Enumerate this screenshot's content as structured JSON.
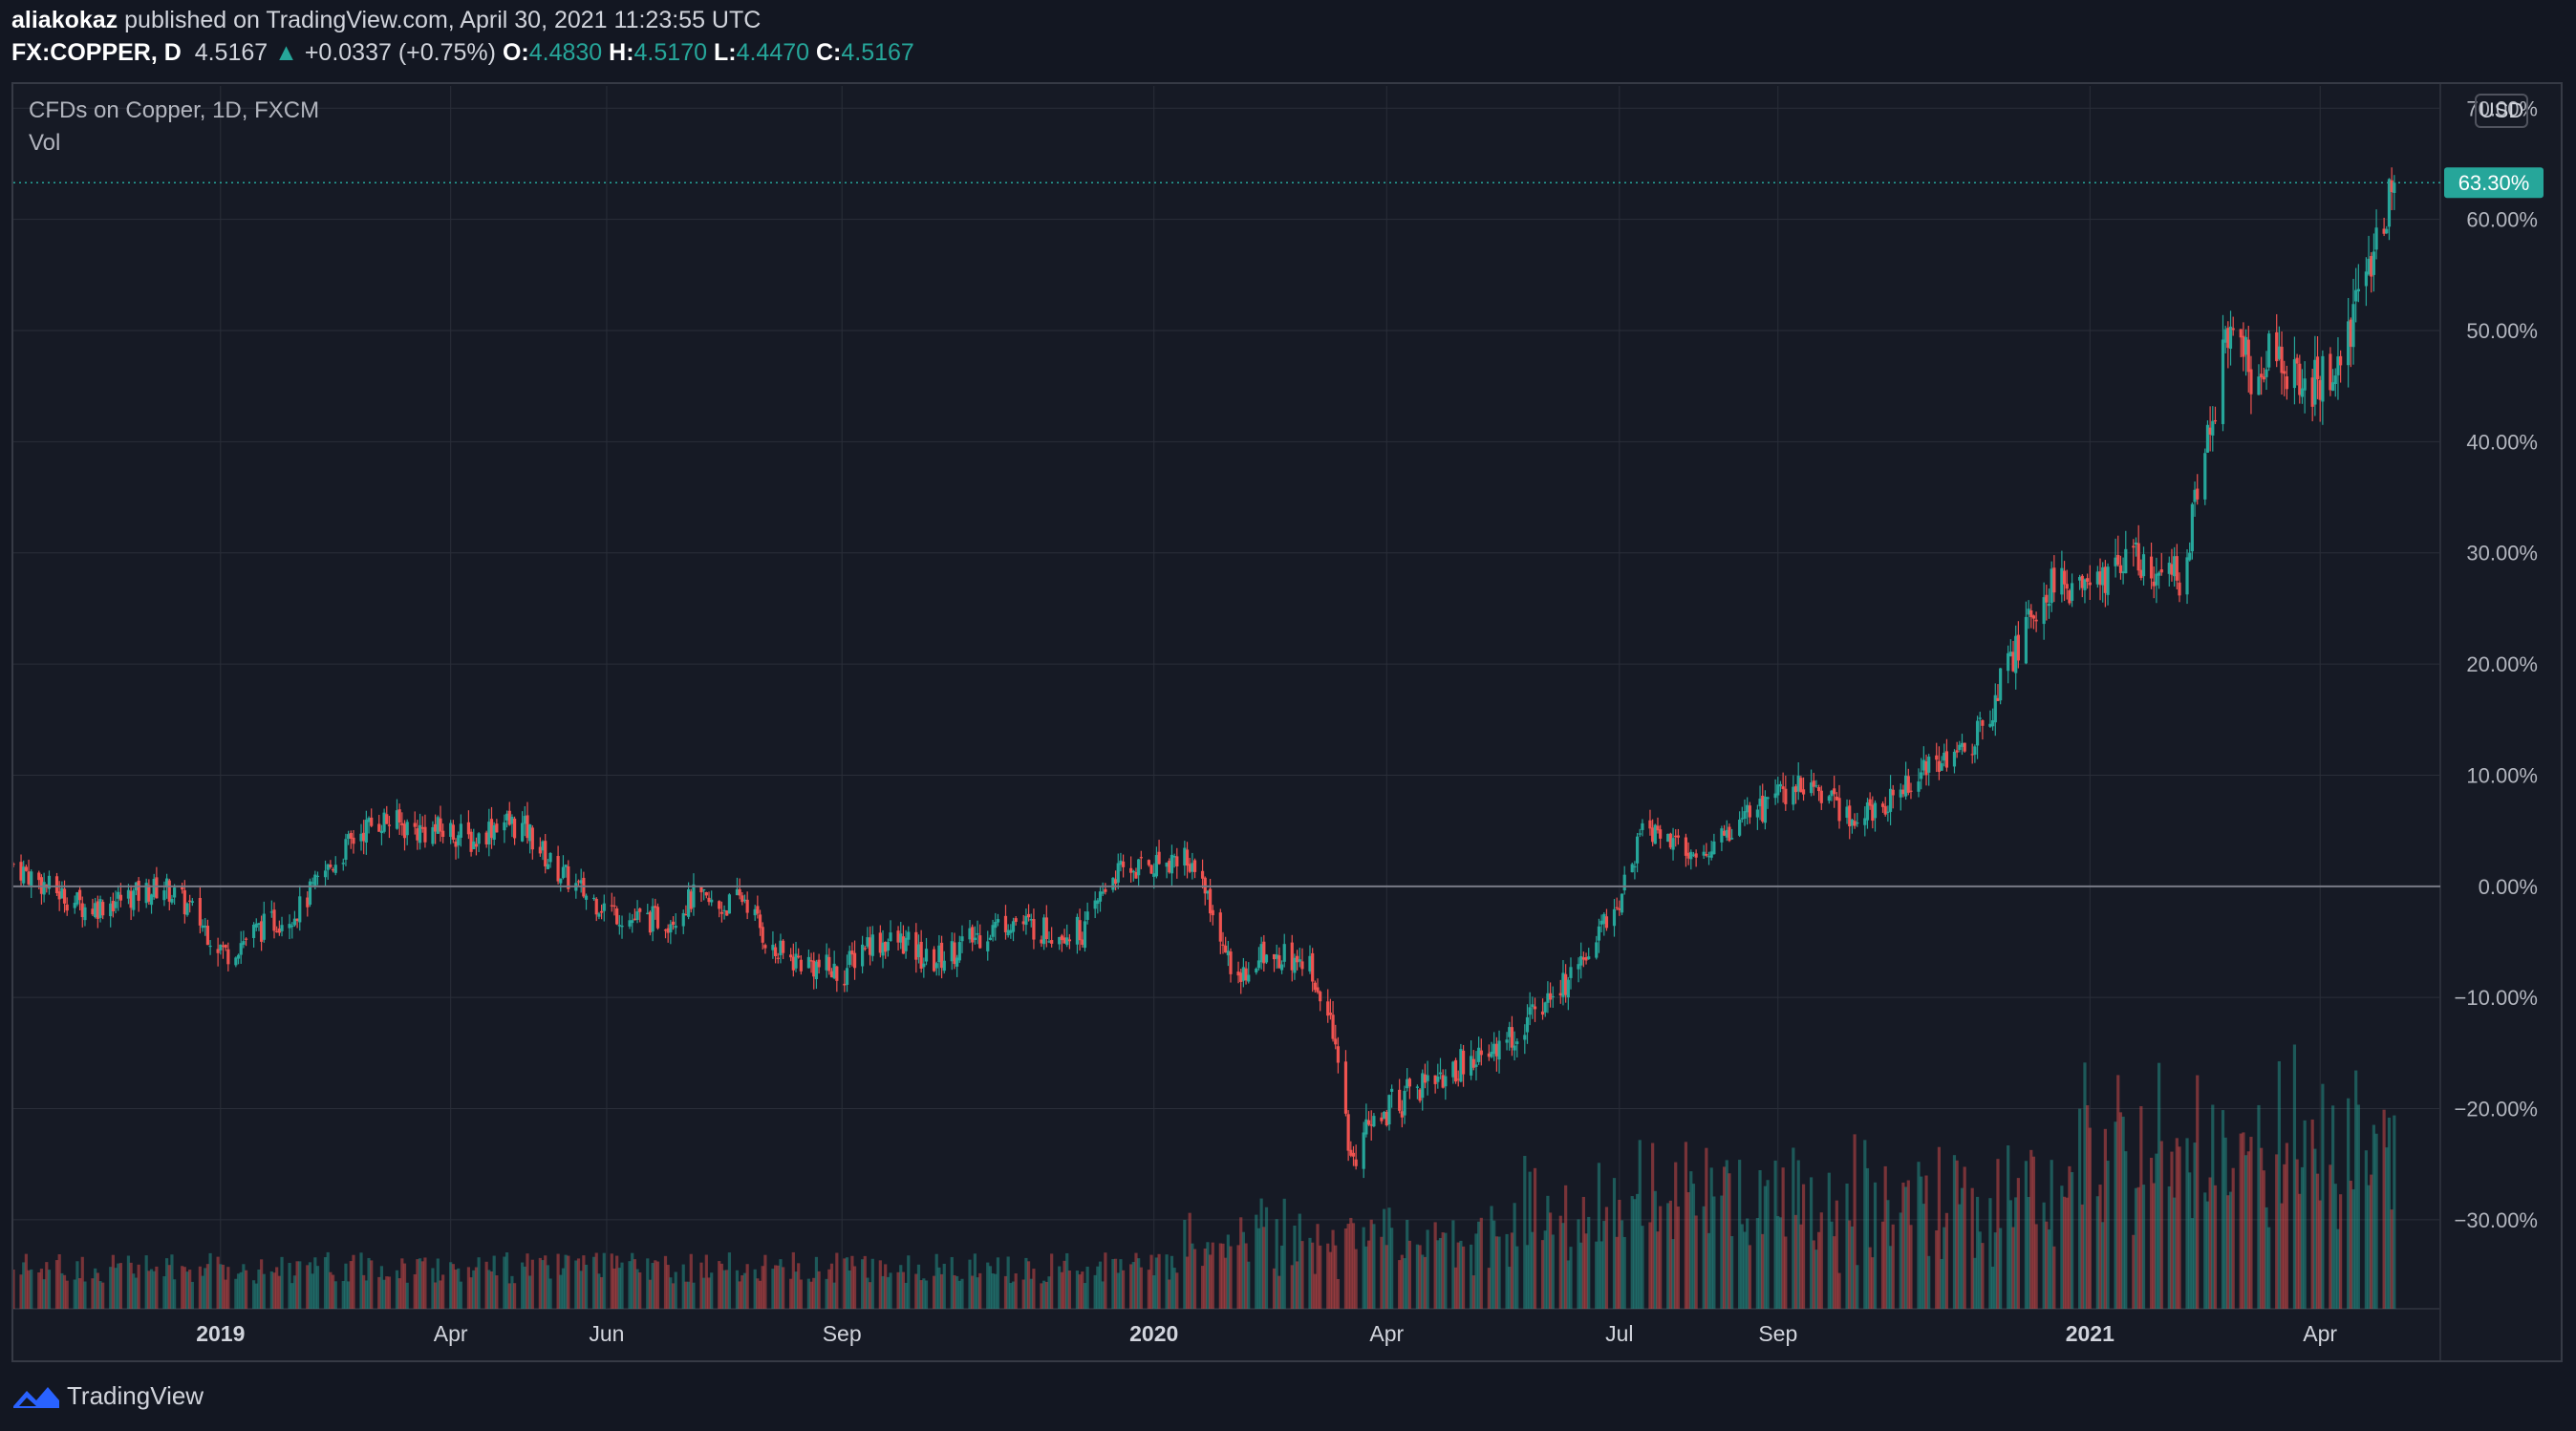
{
  "header": {
    "author": "aliakokaz",
    "published": "published on TradingView.com, April 30, 2021 11:23:55 UTC",
    "symbol": "FX:COPPER, D",
    "price": "4.5167",
    "change_arrow": "▲",
    "change": "+0.0337 (+0.75%)",
    "open_label": "O:",
    "open": "4.4830",
    "high_label": "H:",
    "high": "4.5170",
    "low_label": "L:",
    "low": "4.4470",
    "close_label": "C:",
    "close": "4.5167"
  },
  "legend": {
    "series_title": "CFDs on Copper, 1D, FXCM",
    "volume_label": "Vol"
  },
  "currency_button": "USD",
  "footer": {
    "brand": "TradingView",
    "logo_icon": "tradingview-logo-icon"
  },
  "colors": {
    "background": "#131722",
    "up": "#26a69a",
    "down": "#ef5350",
    "grid": "#2a2e39",
    "price_line": "#26a69a"
  },
  "chart_data": {
    "type": "candlestick",
    "scale": "percent",
    "ylim": [
      -38,
      72
    ],
    "y_ticks": [
      "70.00%",
      "60.00%",
      "50.00%",
      "40.00%",
      "30.00%",
      "20.00%",
      "10.00%",
      "0.00%",
      "−10.00%",
      "−20.00%",
      "−30.00%"
    ],
    "y_tick_values": [
      70,
      60,
      50,
      40,
      30,
      20,
      10,
      0,
      -10,
      -20,
      -30
    ],
    "x_ticks": [
      "2019",
      "Apr",
      "Jun",
      "Sep",
      "2020",
      "Apr",
      "Jul",
      "Sep",
      "2021",
      "Apr"
    ],
    "x_tick_dates": [
      "2019-01-01",
      "2019-04-01",
      "2019-06-01",
      "2019-09-01",
      "2020-01-01",
      "2020-04-01",
      "2020-07-01",
      "2020-09-01",
      "2021-01-01",
      "2021-04-01"
    ],
    "x_range": [
      "2018-10-12",
      "2021-05-18"
    ],
    "last_value_label": "63.30%",
    "last_value": 63.3,
    "baseline": 0,
    "series_name": "CFDs on Copper, 1D, FXCM",
    "percent_path": [
      [
        "2018-10-12",
        2
      ],
      [
        "2018-10-25",
        0
      ],
      [
        "2018-11-10",
        -2
      ],
      [
        "2018-11-25",
        -1
      ],
      [
        "2018-12-10",
        0
      ],
      [
        "2018-12-20",
        -2
      ],
      [
        "2019-01-03",
        -6
      ],
      [
        "2019-01-15",
        -4
      ],
      [
        "2019-02-01",
        -2
      ],
      [
        "2019-02-10",
        1
      ],
      [
        "2019-02-25",
        5
      ],
      [
        "2019-03-05",
        6
      ],
      [
        "2019-03-20",
        5
      ],
      [
        "2019-04-01",
        5
      ],
      [
        "2019-04-10",
        4
      ],
      [
        "2019-04-20",
        6
      ],
      [
        "2019-05-01",
        5
      ],
      [
        "2019-05-10",
        2
      ],
      [
        "2019-05-25",
        -1
      ],
      [
        "2019-06-10",
        -3
      ],
      [
        "2019-06-25",
        -3
      ],
      [
        "2019-07-05",
        -1
      ],
      [
        "2019-07-15",
        -2
      ],
      [
        "2019-07-25",
        -1
      ],
      [
        "2019-08-05",
        -6
      ],
      [
        "2019-08-20",
        -7
      ],
      [
        "2019-09-01",
        -8
      ],
      [
        "2019-09-10",
        -5
      ],
      [
        "2019-09-25",
        -5
      ],
      [
        "2019-10-05",
        -7
      ],
      [
        "2019-10-20",
        -5
      ],
      [
        "2019-11-05",
        -3
      ],
      [
        "2019-11-20",
        -4
      ],
      [
        "2019-12-05",
        -4
      ],
      [
        "2019-12-15",
        1
      ],
      [
        "2020-01-01",
        2
      ],
      [
        "2020-01-14",
        3
      ],
      [
        "2020-01-20",
        0
      ],
      [
        "2020-02-01",
        -8
      ],
      [
        "2020-02-15",
        -6
      ],
      [
        "2020-03-01",
        -7
      ],
      [
        "2020-03-10",
        -12
      ],
      [
        "2020-03-19",
        -25
      ],
      [
        "2020-03-25",
        -21
      ],
      [
        "2020-04-15",
        -18
      ],
      [
        "2020-05-01",
        -16
      ],
      [
        "2020-05-20",
        -14
      ],
      [
        "2020-06-05",
        -10
      ],
      [
        "2020-06-20",
        -6
      ],
      [
        "2020-07-01",
        -1
      ],
      [
        "2020-07-10",
        5
      ],
      [
        "2020-07-20",
        4
      ],
      [
        "2020-08-05",
        3
      ],
      [
        "2020-08-20",
        6
      ],
      [
        "2020-09-01",
        8
      ],
      [
        "2020-09-15",
        9
      ],
      [
        "2020-10-01",
        6
      ],
      [
        "2020-10-15",
        8
      ],
      [
        "2020-11-01",
        11
      ],
      [
        "2020-11-15",
        12
      ],
      [
        "2020-12-01",
        20
      ],
      [
        "2020-12-15",
        27
      ],
      [
        "2021-01-01",
        27
      ],
      [
        "2021-01-15",
        30
      ],
      [
        "2021-01-25",
        28
      ],
      [
        "2021-02-05",
        28
      ],
      [
        "2021-02-15",
        38
      ],
      [
        "2021-02-25",
        52
      ],
      [
        "2021-03-05",
        46
      ],
      [
        "2021-03-15",
        48
      ],
      [
        "2021-03-25",
        45
      ],
      [
        "2021-04-05",
        46
      ],
      [
        "2021-04-15",
        52
      ],
      [
        "2021-04-25",
        60
      ],
      [
        "2021-04-30",
        63.3
      ]
    ]
  }
}
